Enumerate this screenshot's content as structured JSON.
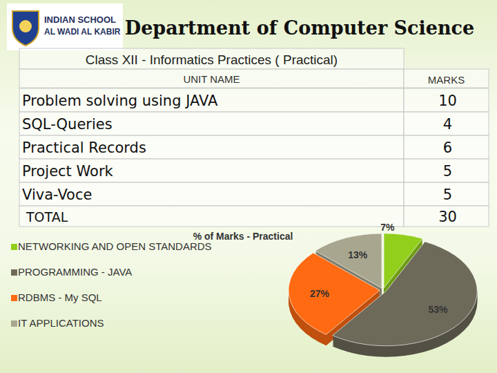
{
  "header": {
    "logo": [
      "INDIAN SCHOOL",
      "AL WADI AL KABIR"
    ],
    "title": "Department of Computer Science"
  },
  "table": {
    "caption": "Class XII - Informatics Practices  ( Practical)",
    "columns": [
      "UNIT NAME",
      "MARKS"
    ],
    "rows": [
      [
        "Problem solving using JAVA",
        10
      ],
      [
        "SQL-Queries",
        4
      ],
      [
        "Practical Records",
        6
      ],
      [
        "Project Work",
        5
      ],
      [
        "Viva-Voce",
        5
      ]
    ],
    "total": [
      "TOTAL",
      30
    ]
  },
  "chart_data": {
    "type": "pie",
    "title": "% of Marks - Practical",
    "categories": [
      "NETWORKING AND OPEN STANDARDS",
      "PROGRAMMING - JAVA",
      "RDBMS - My SQL",
      "IT APPLICATIONS"
    ],
    "values": [
      7,
      53,
      27,
      13
    ],
    "value_labels": [
      "7%",
      "53%",
      "27%",
      "13%"
    ],
    "colors": [
      "#92cf1c",
      "#6e6a5a",
      "#ff6a12",
      "#a9a68f"
    ],
    "data_labels": true,
    "legend": "left"
  }
}
